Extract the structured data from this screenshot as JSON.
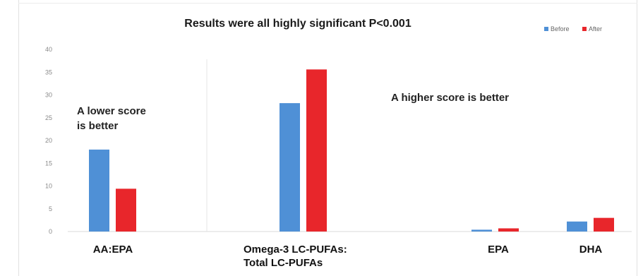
{
  "chart_data": {
    "type": "bar",
    "title": "Results were all highly significant P<0.001",
    "categories": [
      [
        "AA:EPA"
      ],
      [
        "Omega-3 LC-PUFAs:",
        "Total LC-PUFAs"
      ],
      [
        "EPA"
      ],
      [
        "DHA"
      ]
    ],
    "series": [
      {
        "name": "Before",
        "color": "#4f90d6",
        "values": [
          18,
          28.2,
          0.4,
          2.2
        ]
      },
      {
        "name": "After",
        "color": "#e8262b",
        "values": [
          9.4,
          35.6,
          0.7,
          3.0
        ]
      }
    ],
    "ylim": [
      0,
      40
    ],
    "yticks": [
      0,
      5,
      10,
      15,
      20,
      25,
      30,
      35,
      40
    ],
    "grid": false,
    "legend_position": "top-right",
    "annotations": [
      {
        "lines": [
          "A lower score",
          "is better"
        ]
      },
      {
        "lines": [
          "A higher score is better"
        ]
      }
    ]
  }
}
